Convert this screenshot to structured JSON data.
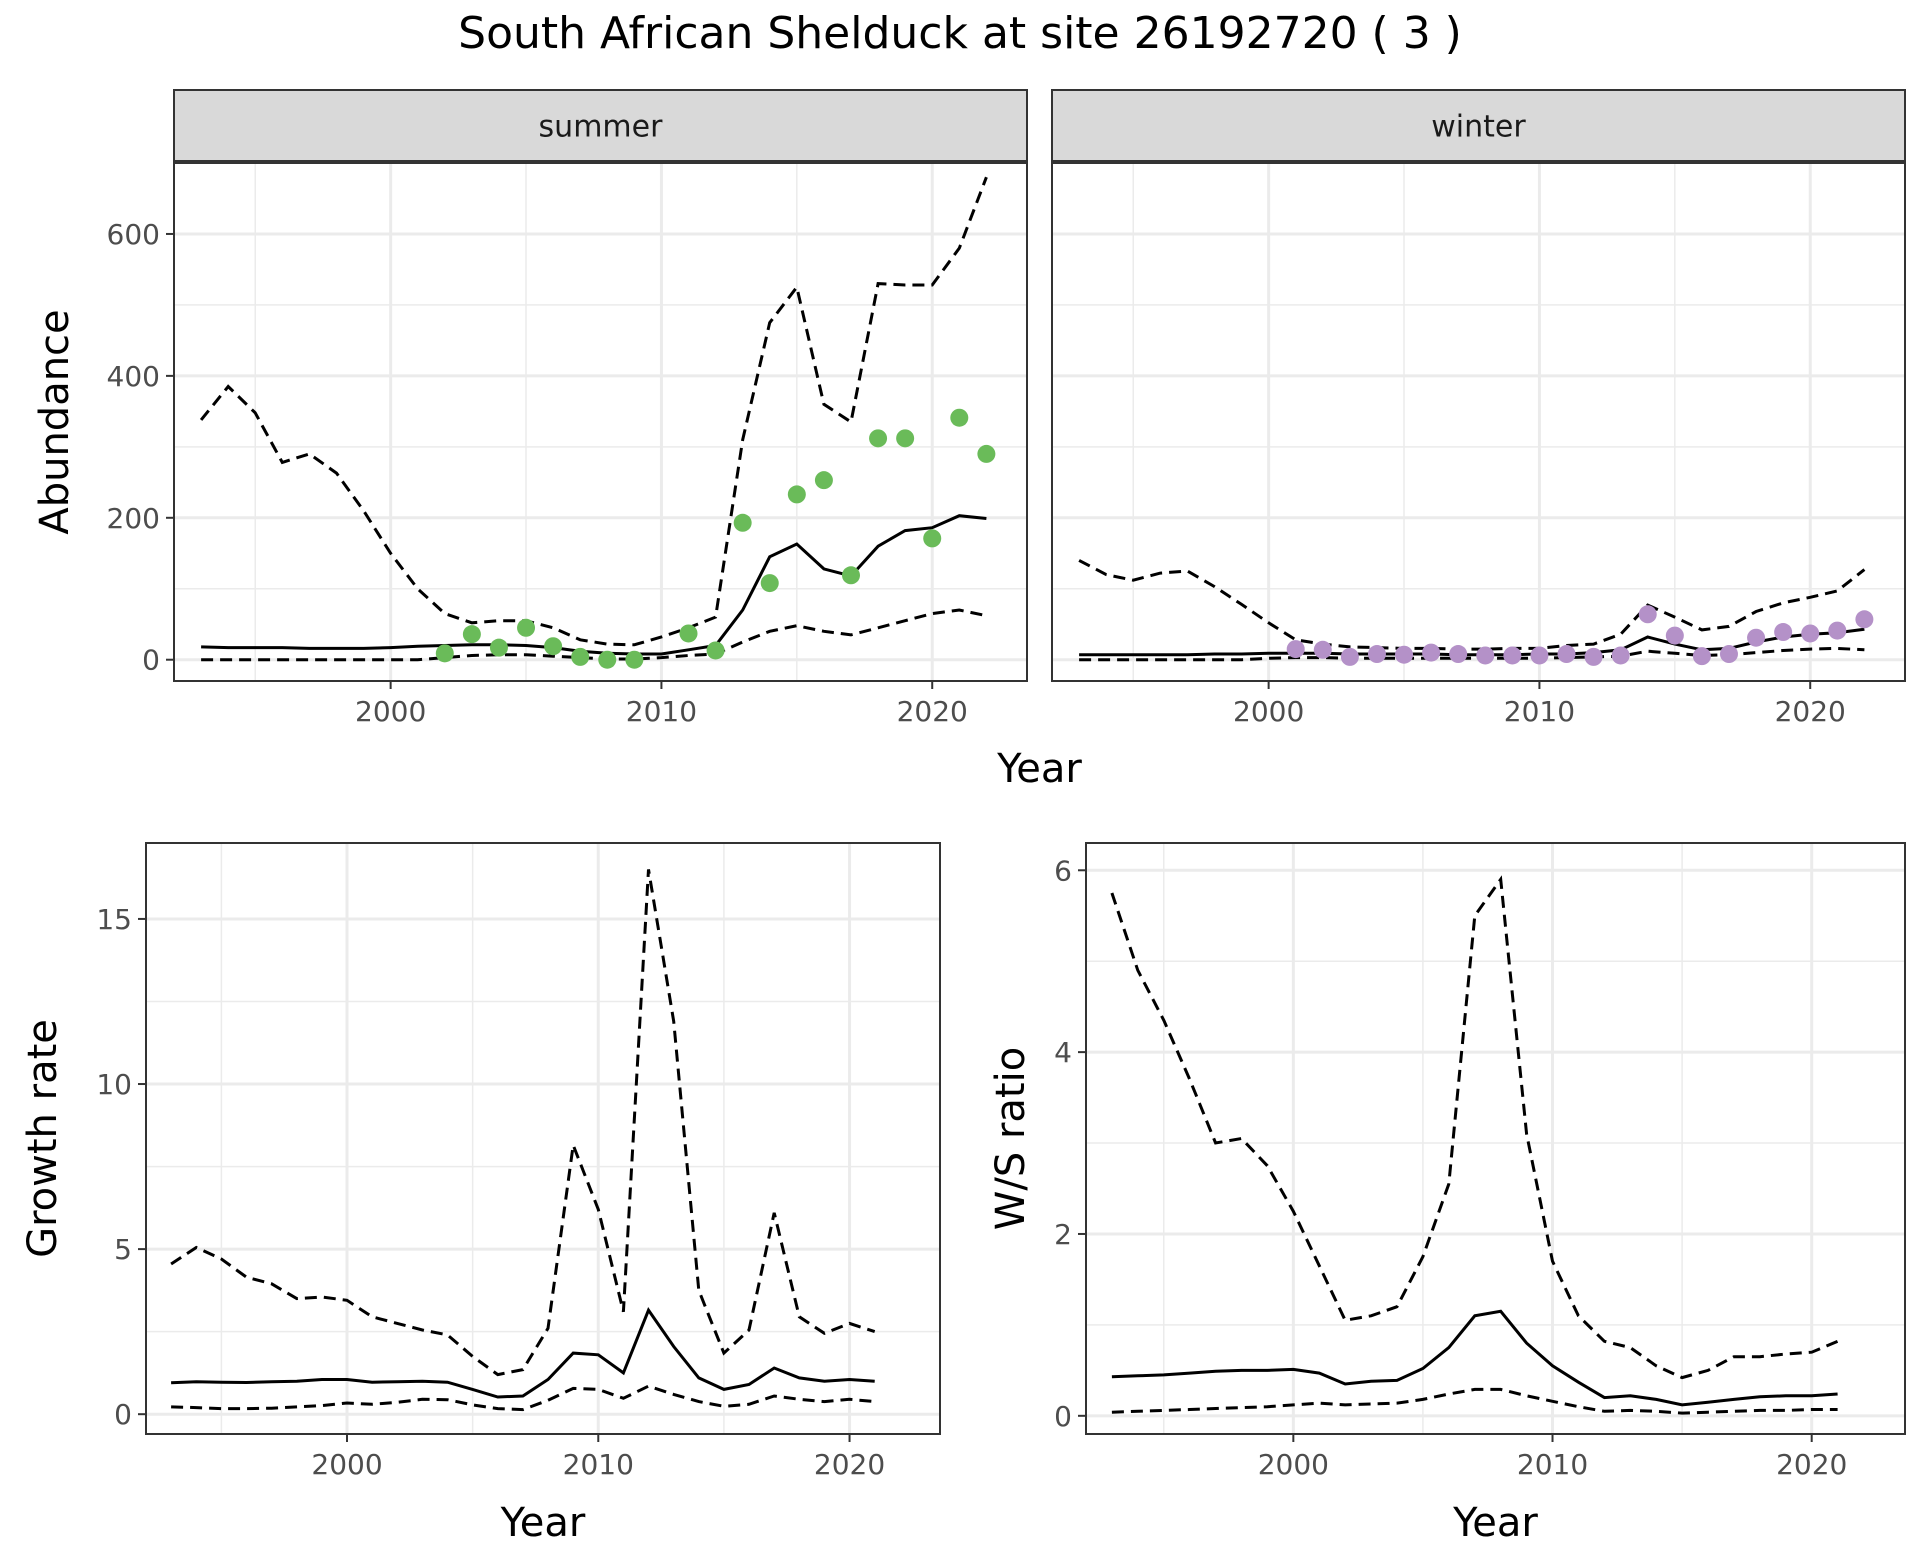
{
  "title": "South African Shelduck at site 26192720 ( 3 )",
  "colors": {
    "summer_points": "#6abb59",
    "winter_points": "#b491c8",
    "strip_bg": "#d9d9d9",
    "grid": "#ebebeb",
    "line": "#000000"
  },
  "chart_data": [
    {
      "type": "line",
      "panel": "summer",
      "strip_label": "summer",
      "ylabel": "Abundance",
      "xlabel": "Year",
      "shared_xlabel": true,
      "xlim": [
        1992,
        2023.5
      ],
      "ylim": [
        -30,
        700
      ],
      "xticks": [
        2000,
        2010,
        2020
      ],
      "yticks": [
        0,
        200,
        400,
        600
      ],
      "show_yticks": true,
      "grid": true,
      "line_series": {
        "x": [
          1993,
          1994,
          1995,
          1996,
          1997,
          1998,
          1999,
          2000,
          2001,
          2002,
          2003,
          2004,
          2005,
          2006,
          2007,
          2008,
          2009,
          2010,
          2011,
          2012,
          2013,
          2014,
          2015,
          2016,
          2017,
          2018,
          2019,
          2020,
          2021,
          2022
        ],
        "mean": [
          18,
          17,
          17,
          17,
          16,
          16,
          16,
          17,
          19,
          20,
          21,
          21,
          20,
          17,
          12,
          9,
          8,
          8,
          14,
          20,
          70,
          145,
          163,
          128,
          118,
          160,
          182,
          186,
          203,
          199
        ],
        "upper": [
          338,
          385,
          348,
          278,
          290,
          263,
          210,
          150,
          100,
          65,
          52,
          55,
          55,
          45,
          28,
          22,
          21,
          32,
          45,
          60,
          310,
          475,
          525,
          360,
          335,
          530,
          528,
          528,
          580,
          680
        ],
        "lower": [
          0,
          0,
          0,
          0,
          0,
          0,
          0,
          0,
          0,
          3,
          6,
          7,
          7,
          5,
          3,
          1,
          1,
          3,
          6,
          8,
          25,
          40,
          48,
          40,
          35,
          45,
          55,
          65,
          70,
          62
        ]
      },
      "points": {
        "x": [
          2002,
          2003,
          2004,
          2005,
          2006,
          2007,
          2008,
          2009,
          2011,
          2012,
          2013,
          2014,
          2015,
          2016,
          2017,
          2018,
          2019,
          2020,
          2021,
          2022
        ],
        "y": [
          9,
          36,
          17,
          45,
          19,
          4,
          0,
          0,
          37,
          13,
          193,
          108,
          233,
          253,
          119,
          312,
          312,
          171,
          341,
          290
        ]
      }
    },
    {
      "type": "line",
      "panel": "winter",
      "strip_label": "winter",
      "ylabel": "",
      "xlabel": "",
      "xlim": [
        1992,
        2023.5
      ],
      "ylim": [
        -30,
        700
      ],
      "xticks": [
        2000,
        2010,
        2020
      ],
      "yticks": [
        0,
        200,
        400,
        600
      ],
      "show_yticks": false,
      "grid": true,
      "line_series": {
        "x": [
          1993,
          1994,
          1995,
          1996,
          1997,
          1998,
          1999,
          2000,
          2001,
          2002,
          2003,
          2004,
          2005,
          2006,
          2007,
          2008,
          2009,
          2010,
          2011,
          2012,
          2013,
          2014,
          2015,
          2016,
          2017,
          2018,
          2019,
          2020,
          2021,
          2022
        ],
        "mean": [
          7,
          7,
          7,
          7,
          7,
          8,
          8,
          9,
          9,
          9,
          8,
          8,
          8,
          8,
          7,
          7,
          7,
          8,
          8,
          10,
          14,
          32,
          22,
          14,
          16,
          25,
          32,
          36,
          38,
          43
        ],
        "upper": [
          140,
          120,
          112,
          122,
          125,
          103,
          78,
          52,
          28,
          22,
          18,
          17,
          16,
          16,
          15,
          15,
          16,
          16,
          20,
          22,
          36,
          77,
          60,
          42,
          47,
          68,
          80,
          88,
          97,
          127
        ],
        "lower": [
          0,
          0,
          0,
          0,
          0,
          0,
          0,
          2,
          3,
          3,
          2,
          2,
          2,
          2,
          2,
          2,
          2,
          2,
          3,
          4,
          5,
          12,
          9,
          6,
          7,
          10,
          13,
          15,
          16,
          14
        ]
      },
      "points": {
        "x": [
          2001,
          2002,
          2003,
          2004,
          2005,
          2006,
          2007,
          2008,
          2009,
          2010,
          2011,
          2012,
          2013,
          2014,
          2015,
          2016,
          2017,
          2018,
          2019,
          2020,
          2021,
          2022
        ],
        "y": [
          15,
          14,
          4,
          8,
          7,
          10,
          8,
          6,
          6,
          6,
          8,
          4,
          6,
          64,
          34,
          5,
          8,
          31,
          39,
          37,
          41,
          57
        ]
      }
    },
    {
      "type": "line",
      "panel": "growth",
      "ylabel": "Growth rate",
      "xlabel": "Year",
      "xlim": [
        1992,
        2023.6
      ],
      "ylim": [
        -0.6,
        17.3
      ],
      "xticks": [
        2000,
        2010,
        2020
      ],
      "yticks": [
        0,
        5,
        10,
        15
      ],
      "show_yticks": true,
      "grid": true,
      "line_series": {
        "x": [
          1993,
          1994,
          1995,
          1996,
          1997,
          1998,
          1999,
          2000,
          2001,
          2002,
          2003,
          2004,
          2005,
          2006,
          2007,
          2008,
          2009,
          2010,
          2011,
          2012,
          2013,
          2014,
          2015,
          2016,
          2017,
          2018,
          2019,
          2020,
          2021
        ],
        "mean": [
          0.95,
          0.98,
          0.97,
          0.96,
          0.98,
          1.0,
          1.05,
          1.05,
          0.97,
          0.98,
          1.0,
          0.97,
          0.75,
          0.52,
          0.55,
          1.05,
          1.85,
          1.8,
          1.25,
          3.15,
          2.05,
          1.1,
          0.75,
          0.9,
          1.4,
          1.1,
          1.0,
          1.05,
          1.0
        ],
        "upper": [
          4.55,
          5.05,
          4.7,
          4.15,
          3.95,
          3.5,
          3.55,
          3.45,
          2.95,
          2.75,
          2.55,
          2.4,
          1.75,
          1.2,
          1.35,
          2.6,
          8.15,
          6.2,
          3.1,
          16.5,
          11.9,
          3.75,
          1.85,
          2.55,
          6.1,
          2.95,
          2.45,
          2.75,
          2.5
        ],
        "lower": [
          0.22,
          0.2,
          0.17,
          0.17,
          0.18,
          0.22,
          0.26,
          0.34,
          0.3,
          0.36,
          0.45,
          0.44,
          0.28,
          0.17,
          0.14,
          0.42,
          0.78,
          0.75,
          0.48,
          0.85,
          0.6,
          0.38,
          0.24,
          0.3,
          0.55,
          0.45,
          0.38,
          0.45,
          0.38
        ]
      }
    },
    {
      "type": "line",
      "panel": "ratio",
      "ylabel": "W/S ratio",
      "xlabel": "Year",
      "xlim": [
        1992,
        2023.6
      ],
      "ylim": [
        -0.2,
        6.3
      ],
      "xticks": [
        2000,
        2010,
        2020
      ],
      "yticks": [
        0,
        2,
        4,
        6
      ],
      "show_yticks": true,
      "grid": true,
      "line_series": {
        "x": [
          1993,
          1994,
          1995,
          1996,
          1997,
          1998,
          1999,
          2000,
          2001,
          2002,
          2003,
          2004,
          2005,
          2006,
          2007,
          2008,
          2009,
          2010,
          2011,
          2012,
          2013,
          2014,
          2015,
          2016,
          2017,
          2018,
          2019,
          2020,
          2021
        ],
        "mean": [
          0.43,
          0.44,
          0.45,
          0.47,
          0.49,
          0.5,
          0.5,
          0.51,
          0.47,
          0.35,
          0.38,
          0.39,
          0.52,
          0.75,
          1.1,
          1.15,
          0.8,
          0.55,
          0.37,
          0.2,
          0.22,
          0.18,
          0.12,
          0.15,
          0.18,
          0.21,
          0.22,
          0.22,
          0.24
        ],
        "upper": [
          5.75,
          4.9,
          4.35,
          3.7,
          3.0,
          3.05,
          2.75,
          2.25,
          1.65,
          1.05,
          1.1,
          1.2,
          1.75,
          2.55,
          5.5,
          5.9,
          3.1,
          1.7,
          1.1,
          0.82,
          0.75,
          0.55,
          0.42,
          0.5,
          0.65,
          0.65,
          0.68,
          0.7,
          0.82
        ],
        "lower": [
          0.04,
          0.05,
          0.06,
          0.07,
          0.08,
          0.09,
          0.1,
          0.12,
          0.14,
          0.12,
          0.13,
          0.14,
          0.18,
          0.24,
          0.29,
          0.29,
          0.22,
          0.16,
          0.1,
          0.05,
          0.06,
          0.05,
          0.03,
          0.04,
          0.05,
          0.06,
          0.06,
          0.07,
          0.07
        ]
      }
    }
  ]
}
